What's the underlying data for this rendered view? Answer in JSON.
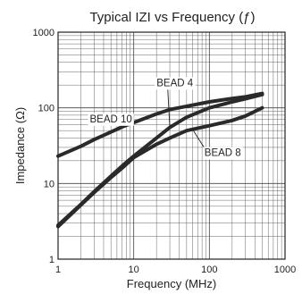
{
  "chart_data": {
    "type": "line",
    "title": "Typical IZI vs Frequency (ƒ)",
    "xlabel": "Frequency (MHz)",
    "ylabel": "Impedance (Ω)",
    "xscale": "log",
    "yscale": "log",
    "xlim": [
      1,
      1000
    ],
    "ylim": [
      1,
      1000
    ],
    "x_ticks": [
      1,
      10,
      100,
      1000
    ],
    "x_tick_labels": [
      "1",
      "10",
      "100",
      "1000"
    ],
    "y_ticks": [
      1,
      10,
      100,
      1000
    ],
    "y_tick_labels": [
      "1",
      "10",
      "100",
      "1000"
    ],
    "grid": true,
    "series": [
      {
        "name": "BEAD 10",
        "x": [
          1,
          2,
          3,
          5,
          7,
          10,
          20,
          30,
          50,
          100,
          200,
          300,
          500
        ],
        "y": [
          23,
          31,
          38,
          48,
          56,
          64,
          83,
          95,
          105,
          120,
          133,
          140,
          155
        ]
      },
      {
        "name": "BEAD 4",
        "x": [
          1,
          2,
          3,
          5,
          7,
          10,
          20,
          30,
          50,
          100,
          200,
          300,
          500
        ],
        "y": [
          2.8,
          5.3,
          7.8,
          12.5,
          17,
          23,
          40,
          55,
          75,
          100,
          120,
          132,
          150
        ]
      },
      {
        "name": "BEAD 8",
        "x": [
          1,
          2,
          3,
          5,
          7,
          10,
          20,
          30,
          50,
          100,
          200,
          300,
          500
        ],
        "y": [
          2.7,
          5.2,
          7.6,
          12,
          16,
          22,
          33,
          40,
          50,
          58,
          68,
          78,
          100
        ]
      }
    ],
    "annotations": [
      {
        "text": "BEAD 10",
        "x": 5,
        "y": 70,
        "target_series": 0
      },
      {
        "text": "BEAD 4",
        "x": 35,
        "y": 210,
        "target_series": 1
      },
      {
        "text": "BEAD 8",
        "x": 150,
        "y": 25,
        "target_series": 2
      }
    ]
  }
}
